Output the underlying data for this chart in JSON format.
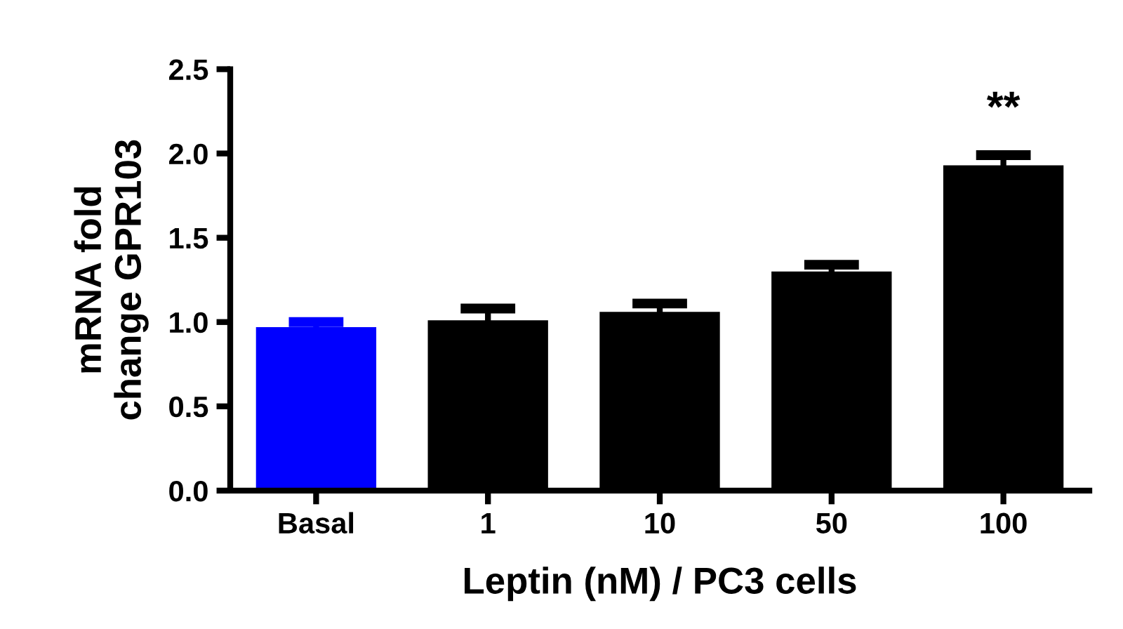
{
  "chart_data": {
    "type": "bar",
    "categories": [
      "Basal",
      "1",
      "10",
      "50",
      "100"
    ],
    "values": [
      0.97,
      1.01,
      1.06,
      1.3,
      1.93
    ],
    "errors": [
      0.03,
      0.07,
      0.05,
      0.04,
      0.06
    ],
    "colors": [
      "#0000ff",
      "#000000",
      "#000000",
      "#000000",
      "#000000"
    ],
    "xlabel": "Leptin (nM) / PC3 cells",
    "ylabel": "mRNA fold\nchange GPR103",
    "ylim": [
      0,
      2.5
    ],
    "yticks": [
      {
        "value": 0,
        "label": "0.0"
      },
      0.5,
      {
        "value": 1,
        "label": "1.0"
      },
      1.5,
      {
        "value": 2,
        "label": "2.0"
      },
      2.5
    ],
    "annotations": [
      {
        "text": "**",
        "x": "100",
        "y": 1.93
      }
    ],
    "grid": false,
    "legend": false
  }
}
